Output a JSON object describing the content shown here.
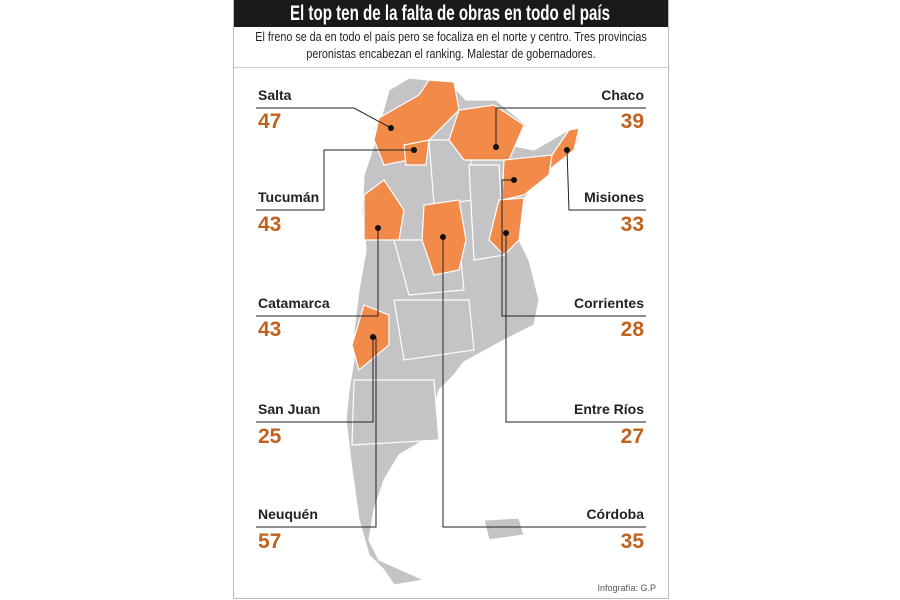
{
  "title": "El top ten de la falta de obras en todo el país",
  "subtitle": "El freno se da en todo el país pero se focaliza en el norte y centro. Tres provincias peronistas encabezan el ranking. Malestar de gobernadores.",
  "credit": "Infografía: G.P",
  "colors": {
    "highlight": "#f28a4a",
    "base": "#c4c4c6",
    "value": "#c0611e"
  },
  "left": [
    {
      "name": "Salta",
      "value": "47"
    },
    {
      "name": "Tucumán",
      "value": "43"
    },
    {
      "name": "Catamarca",
      "value": "43"
    },
    {
      "name": "San Juan",
      "value": "25"
    },
    {
      "name": "Neuquén",
      "value": "57"
    }
  ],
  "right": [
    {
      "name": "Chaco",
      "value": "39"
    },
    {
      "name": "Misiones",
      "value": "33"
    },
    {
      "name": "Corrientes",
      "value": "28"
    },
    {
      "name": "Entre Ríos",
      "value": "27"
    },
    {
      "name": "Córdoba",
      "value": "35"
    }
  ]
}
